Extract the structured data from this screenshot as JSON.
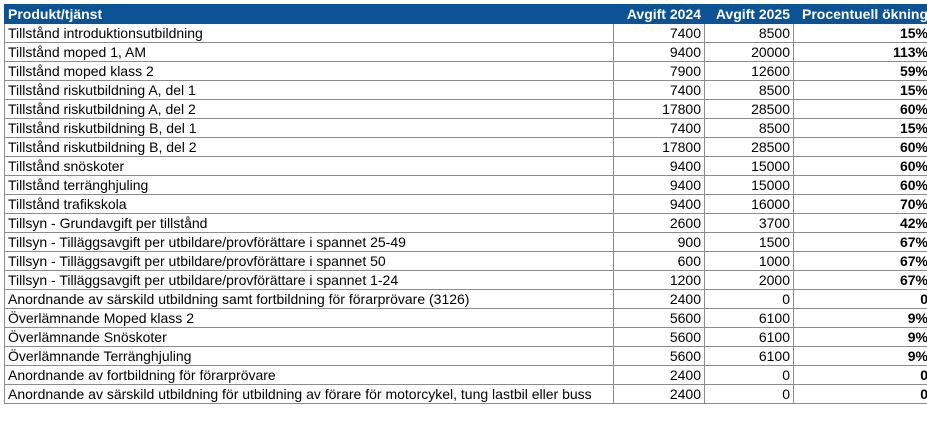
{
  "header": {
    "product": "Produkt/tjänst",
    "fee2024": "Avgift 2024",
    "fee2025": "Avgift 2025",
    "increase": "Procentuell ökning"
  },
  "rows": [
    {
      "product": "Tillstånd introduktionsutbildning",
      "fee2024": "7400",
      "fee2025": "8500",
      "increase": "15%"
    },
    {
      "product": "Tillstånd moped 1, AM",
      "fee2024": "9400",
      "fee2025": "20000",
      "increase": "113%"
    },
    {
      "product": "Tillstånd moped klass 2",
      "fee2024": "7900",
      "fee2025": "12600",
      "increase": "59%"
    },
    {
      "product": "Tillstånd riskutbildning A, del 1",
      "fee2024": "7400",
      "fee2025": "8500",
      "increase": "15%"
    },
    {
      "product": "Tillstånd riskutbildning A, del 2",
      "fee2024": "17800",
      "fee2025": "28500",
      "increase": "60%"
    },
    {
      "product": "Tillstånd riskutbildning B, del 1",
      "fee2024": "7400",
      "fee2025": "8500",
      "increase": "15%"
    },
    {
      "product": "Tillstånd riskutbildning B, del 2",
      "fee2024": "17800",
      "fee2025": "28500",
      "increase": "60%"
    },
    {
      "product": "Tillstånd snöskoter",
      "fee2024": "9400",
      "fee2025": "15000",
      "increase": "60%"
    },
    {
      "product": "Tillstånd terränghjuling",
      "fee2024": "9400",
      "fee2025": "15000",
      "increase": "60%"
    },
    {
      "product": "Tillstånd trafikskola",
      "fee2024": "9400",
      "fee2025": "16000",
      "increase": "70%"
    },
    {
      "product": "Tillsyn - Grundavgift per tillstånd",
      "fee2024": "2600",
      "fee2025": "3700",
      "increase": "42%"
    },
    {
      "product": "Tillsyn - Tilläggsavgift per utbildare/provförättare i spannet 25-49",
      "fee2024": "900",
      "fee2025": "1500",
      "increase": "67%"
    },
    {
      "product": "Tillsyn - Tilläggsavgift per utbildare/provförättare i spannet 50",
      "fee2024": "600",
      "fee2025": "1000",
      "increase": "67%"
    },
    {
      "product": "Tillsyn - Tilläggsavgift per utbildare/provförättare i spannet 1-24",
      "fee2024": "1200",
      "fee2025": "2000",
      "increase": "67%"
    },
    {
      "product": "Anordnande av särskild utbildning samt fortbildning för förarprövare (3126)",
      "fee2024": "2400",
      "fee2025": "0",
      "increase": "0"
    },
    {
      "product": "Överlämnande  Moped klass 2",
      "fee2024": "5600",
      "fee2025": "6100",
      "increase": "9%"
    },
    {
      "product": "Överlämnande  Snöskoter",
      "fee2024": "5600",
      "fee2025": "6100",
      "increase": "9%"
    },
    {
      "product": "Överlämnande  Terränghjuling",
      "fee2024": "5600",
      "fee2025": "6100",
      "increase": "9%"
    },
    {
      "product": "Anordnande  av fortbildning för förarprövare",
      "fee2024": "2400",
      "fee2025": "0",
      "increase": "0"
    },
    {
      "product": "Anordnande av särskild utbildning för utbildning av förare för motorcykel, tung lastbil eller buss",
      "fee2024": "2400",
      "fee2025": "0",
      "increase": "0"
    }
  ]
}
